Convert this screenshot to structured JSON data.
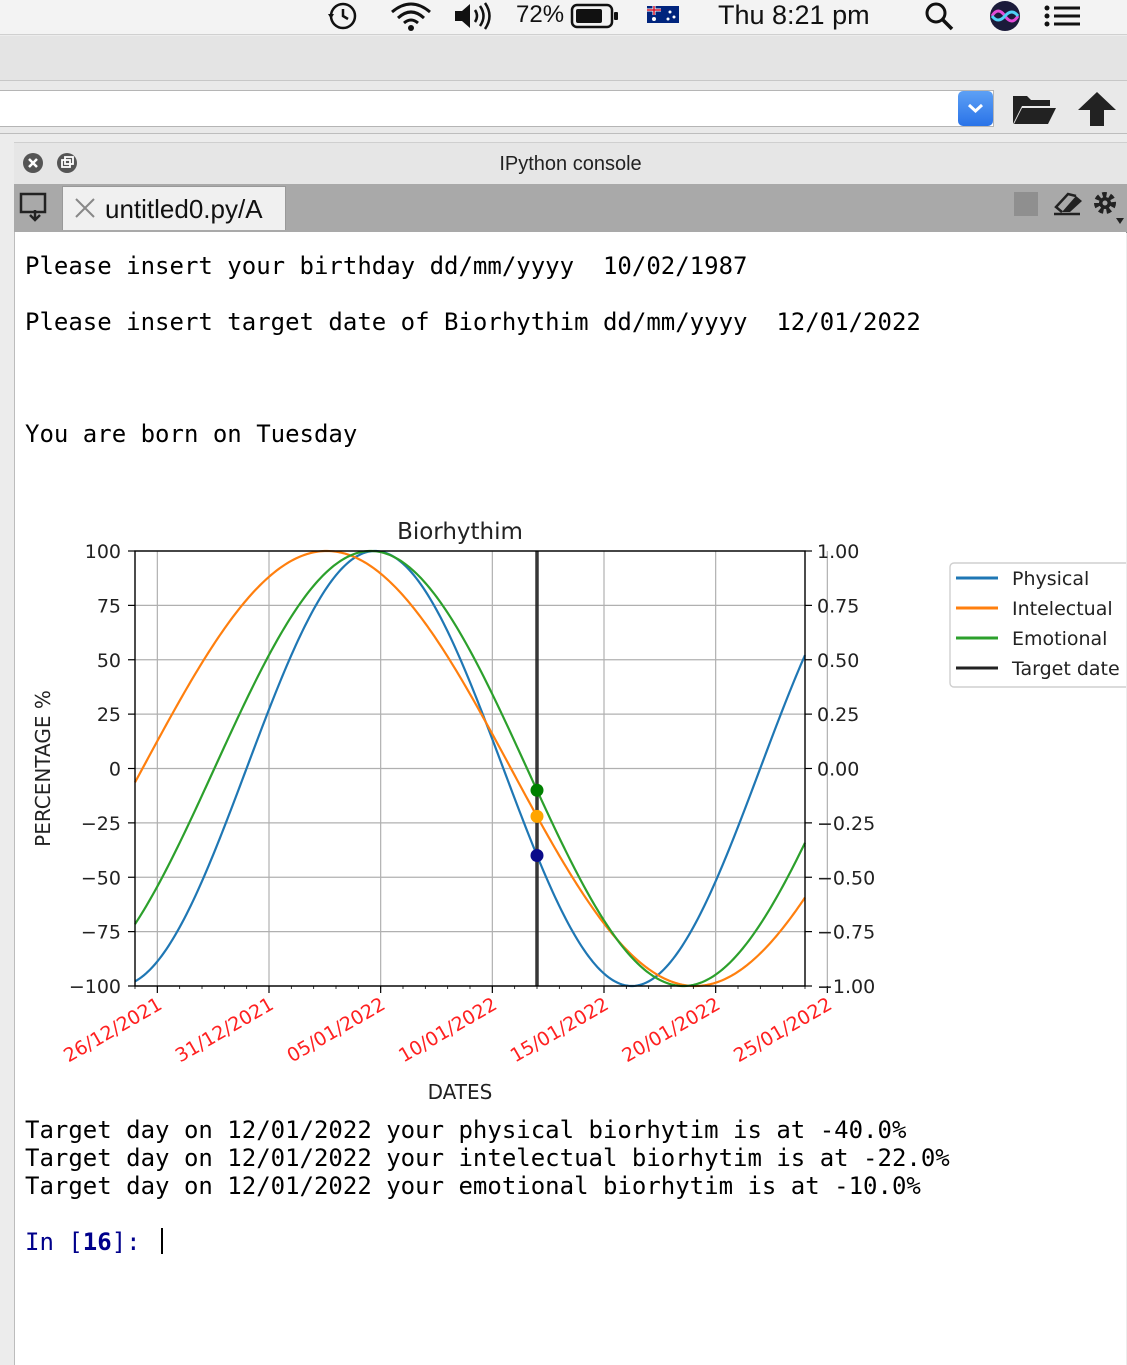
{
  "menubar": {
    "battery_pct": "72%",
    "clock": "Thu 8:21 pm"
  },
  "pane": {
    "title": "IPython console",
    "tab_label": "untitled0.py/A"
  },
  "console": {
    "lines": [
      "Please insert your birthday dd/mm/yyyy  10/02/1987",
      "Please insert target date of Biorhythim dd/mm/yyyy  12/01/2022",
      "You are born on Tuesday"
    ],
    "results": [
      "Target day on 12/01/2022 your physical biorhytim is at -40.0%",
      "Target day on 12/01/2022 your intelectual biorhytim is at -22.0%",
      "Target day on 12/01/2022 your emotional biorhytim is at -10.0%"
    ],
    "prompt_in": "In [",
    "prompt_num": "16",
    "prompt_end": "]: "
  },
  "chart_data": {
    "type": "line",
    "title": "Biorhythim",
    "xlabel": "DATES",
    "ylabel": "PERCENTAGE %",
    "x_start": "2021-12-25",
    "x_end": "2022-01-24",
    "xticks": [
      "26/12/2021",
      "31/12/2021",
      "05/01/2022",
      "10/01/2022",
      "15/01/2022",
      "20/01/2022",
      "25/01/2022"
    ],
    "ylim": [
      -100,
      100
    ],
    "yticks": [
      "100",
      "75",
      "50",
      "25",
      "0",
      "−25",
      "−50",
      "−75",
      "−100"
    ],
    "y2lim": [
      -1.0,
      1.0
    ],
    "y2ticks": [
      "1.00",
      "0.75",
      "0.50",
      "0.25",
      "0.00",
      "−0.25",
      "−0.50",
      "−0.75",
      "−1.00"
    ],
    "grid": true,
    "legend": "right",
    "series": [
      {
        "name": "Physical",
        "color": "#1f77b4",
        "period_days": 23,
        "value_at_target": -40.0
      },
      {
        "name": "Intelectual",
        "color": "#ff7f0e",
        "period_days": 33,
        "value_at_target": -22.0
      },
      {
        "name": "Emotional",
        "color": "#2ca02c",
        "period_days": 28,
        "value_at_target": -10.0
      },
      {
        "name": "Target date",
        "color": "#222222",
        "date": "2022-01-12"
      }
    ],
    "markers": [
      {
        "series": "Physical",
        "color": "#0b0b8a",
        "value": -40.0
      },
      {
        "series": "Intelectual",
        "color": "#ffa500",
        "value": -22.0
      },
      {
        "series": "Emotional",
        "color": "#008000",
        "value": -10.0
      }
    ]
  }
}
